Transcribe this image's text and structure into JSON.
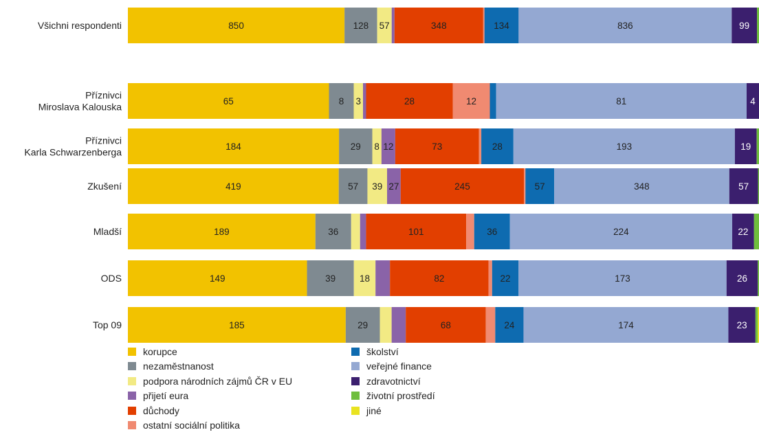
{
  "chart_data": {
    "type": "bar",
    "orientation": "horizontal",
    "stacked": true,
    "normalized": true,
    "categories": [
      "Všichni respondenti",
      "Příznivci\nMiroslava Kalouska",
      "Příznivci\nKarla Schwarzenberga",
      "Zkušení",
      "Mladší",
      "ODS",
      "Top 09"
    ],
    "series": [
      {
        "name": "korupce",
        "color": "#f2c200",
        "label_color": "#222222",
        "values": [
          850,
          65,
          184,
          419,
          189,
          149,
          185
        ]
      },
      {
        "name": "nezaměstnanost",
        "color": "#7f8a91",
        "label_color": "#222222",
        "values": [
          128,
          8,
          29,
          57,
          36,
          39,
          29
        ]
      },
      {
        "name": "podpora národních zájmů ČR v EU",
        "color": "#f2ea84",
        "label_color": "#222222",
        "values": [
          57,
          3,
          8,
          39,
          9,
          18,
          10
        ]
      },
      {
        "name": "přijetí eura",
        "color": "#8a63a8",
        "label_color": "#222222",
        "values": [
          11,
          1,
          12,
          27,
          6,
          12,
          12
        ]
      },
      {
        "name": "důchody",
        "color": "#e23f00",
        "label_color": "#222222",
        "values": [
          348,
          28,
          73,
          245,
          101,
          82,
          68
        ]
      },
      {
        "name": "ostatní sociální politika",
        "color": "#f08a71",
        "label_color": "#222222",
        "values": [
          5,
          12,
          2,
          3,
          8,
          3,
          8
        ]
      },
      {
        "name": "školství",
        "color": "#0e6bb0",
        "label_color": "#222222",
        "values": [
          134,
          2,
          28,
          57,
          36,
          22,
          24
        ]
      },
      {
        "name": "veřejné finance",
        "color": "#94a8d2",
        "label_color": "#222222",
        "values": [
          836,
          81,
          193,
          348,
          224,
          173,
          174
        ]
      },
      {
        "name": "zdravotnictví",
        "color": "#3b1f6e",
        "label_color": "#ffffff",
        "values": [
          99,
          4,
          19,
          57,
          22,
          26,
          23
        ]
      },
      {
        "name": "životní prostředí",
        "color": "#6fbe3d",
        "label_color": "#222222",
        "values": [
          8,
          0,
          2,
          2,
          5,
          1,
          2
        ]
      },
      {
        "name": "jiné",
        "color": "#e9e321",
        "label_color": "#222222",
        "values": [
          0,
          0,
          0,
          0,
          0,
          0,
          1
        ]
      }
    ],
    "data_labels": [
      [
        850,
        128,
        57,
        null,
        348,
        null,
        134,
        836,
        99,
        null,
        null
      ],
      [
        65,
        8,
        3,
        null,
        28,
        12,
        null,
        81,
        4,
        null,
        null
      ],
      [
        184,
        29,
        8,
        12,
        73,
        null,
        28,
        193,
        19,
        null,
        null
      ],
      [
        419,
        57,
        39,
        27,
        245,
        null,
        57,
        348,
        57,
        null,
        null
      ],
      [
        189,
        36,
        null,
        null,
        101,
        null,
        36,
        224,
        22,
        null,
        null
      ],
      [
        149,
        39,
        18,
        null,
        82,
        null,
        22,
        173,
        26,
        null,
        null
      ],
      [
        185,
        29,
        null,
        null,
        68,
        null,
        24,
        174,
        23,
        null,
        null
      ]
    ],
    "legend": {
      "placement": "bottom",
      "columns": [
        [
          "korupce",
          "nezaměstnanost",
          "podpora národních zájmů ČR v EU",
          "přijetí eura",
          "důchody",
          "ostatní sociální politika"
        ],
        [
          "školství",
          "veřejné finance",
          "zdravotnictví",
          "životní prostředí",
          "jiné"
        ]
      ]
    },
    "grid": false,
    "title": "",
    "xlabel": "",
    "ylabel": ""
  }
}
